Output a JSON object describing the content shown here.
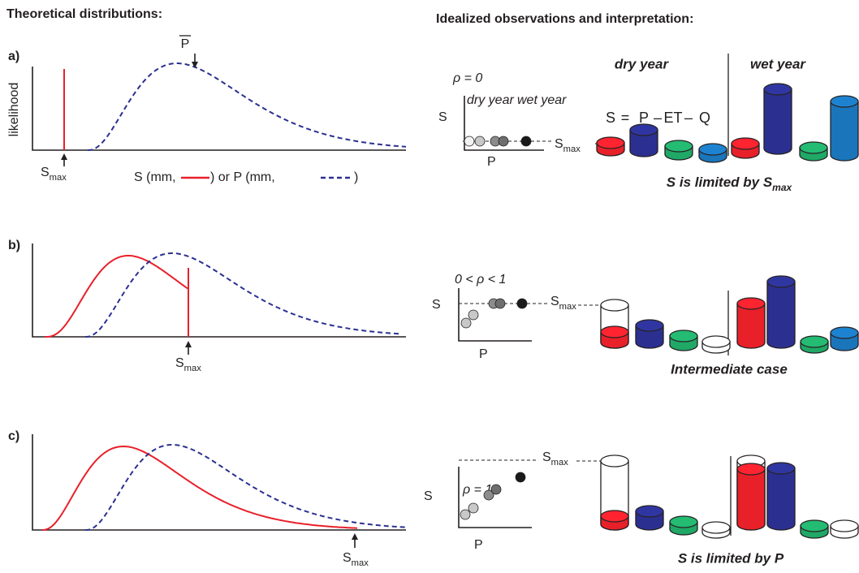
{
  "left_heading": "Theoretical distributions:",
  "right_heading": "Idealized observations and interpretation:",
  "y_axis_label": "likelihood",
  "mean_label": "P",
  "smax": {
    "main": "S",
    "sub": "max"
  },
  "legend": {
    "s_part": "S (mm,",
    "p_part": ")  or  P (mm,",
    "end": ")"
  },
  "column_headers": [
    "dry year",
    "wet year"
  ],
  "equation": [
    "S",
    "=",
    "P",
    "–",
    "ET",
    "–",
    "Q"
  ],
  "scatter_axes": {
    "x": "P",
    "y": "S"
  },
  "scatter_years": [
    "dry year",
    "wet year"
  ],
  "panels": [
    {
      "label": "a)",
      "rho": "ρ = 0",
      "caption": {
        "text": "S is limited by S",
        "sub": "max"
      }
    },
    {
      "label": "b)",
      "rho": "0 < ρ < 1",
      "caption": {
        "text": "Intermediate case"
      }
    },
    {
      "label": "c)",
      "rho": "ρ = 1",
      "caption": {
        "text": "S is limited by P"
      }
    }
  ]
}
